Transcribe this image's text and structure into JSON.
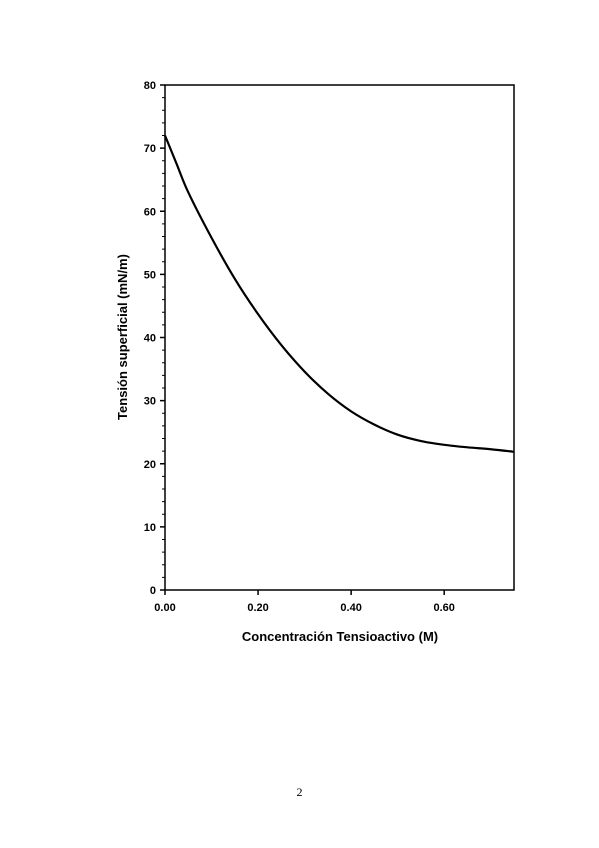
{
  "page": {
    "number": "2"
  },
  "chart_data": {
    "type": "line",
    "xlabel": "Concentración Tensioactivo (M)",
    "ylabel": "Tensión superficial (mN/m)",
    "xlim": [
      0,
      0.75
    ],
    "ylim": [
      0,
      80
    ],
    "x_ticks": [
      0,
      0.2,
      0.4,
      0.6
    ],
    "x_tick_labels": [
      "0.00",
      "0.20",
      "0.40",
      "0.60"
    ],
    "y_ticks": [
      0,
      10,
      20,
      30,
      40,
      50,
      60,
      70,
      80
    ],
    "y_tick_labels": [
      "0",
      "10",
      "20",
      "30",
      "40",
      "50",
      "60",
      "70",
      "80"
    ],
    "grid": false,
    "series": [
      {
        "color": "#000000",
        "x": [
          0,
          0.025,
          0.05,
          0.1,
          0.15,
          0.2,
          0.25,
          0.3,
          0.35,
          0.4,
          0.45,
          0.5,
          0.55,
          0.6,
          0.65,
          0.7,
          0.75
        ],
        "y": [
          72,
          67.5,
          63,
          55.8,
          49.3,
          43.7,
          38.8,
          34.6,
          31.1,
          28.3,
          26.2,
          24.6,
          23.6,
          23.0,
          22.6,
          22.3,
          21.9
        ]
      }
    ]
  }
}
